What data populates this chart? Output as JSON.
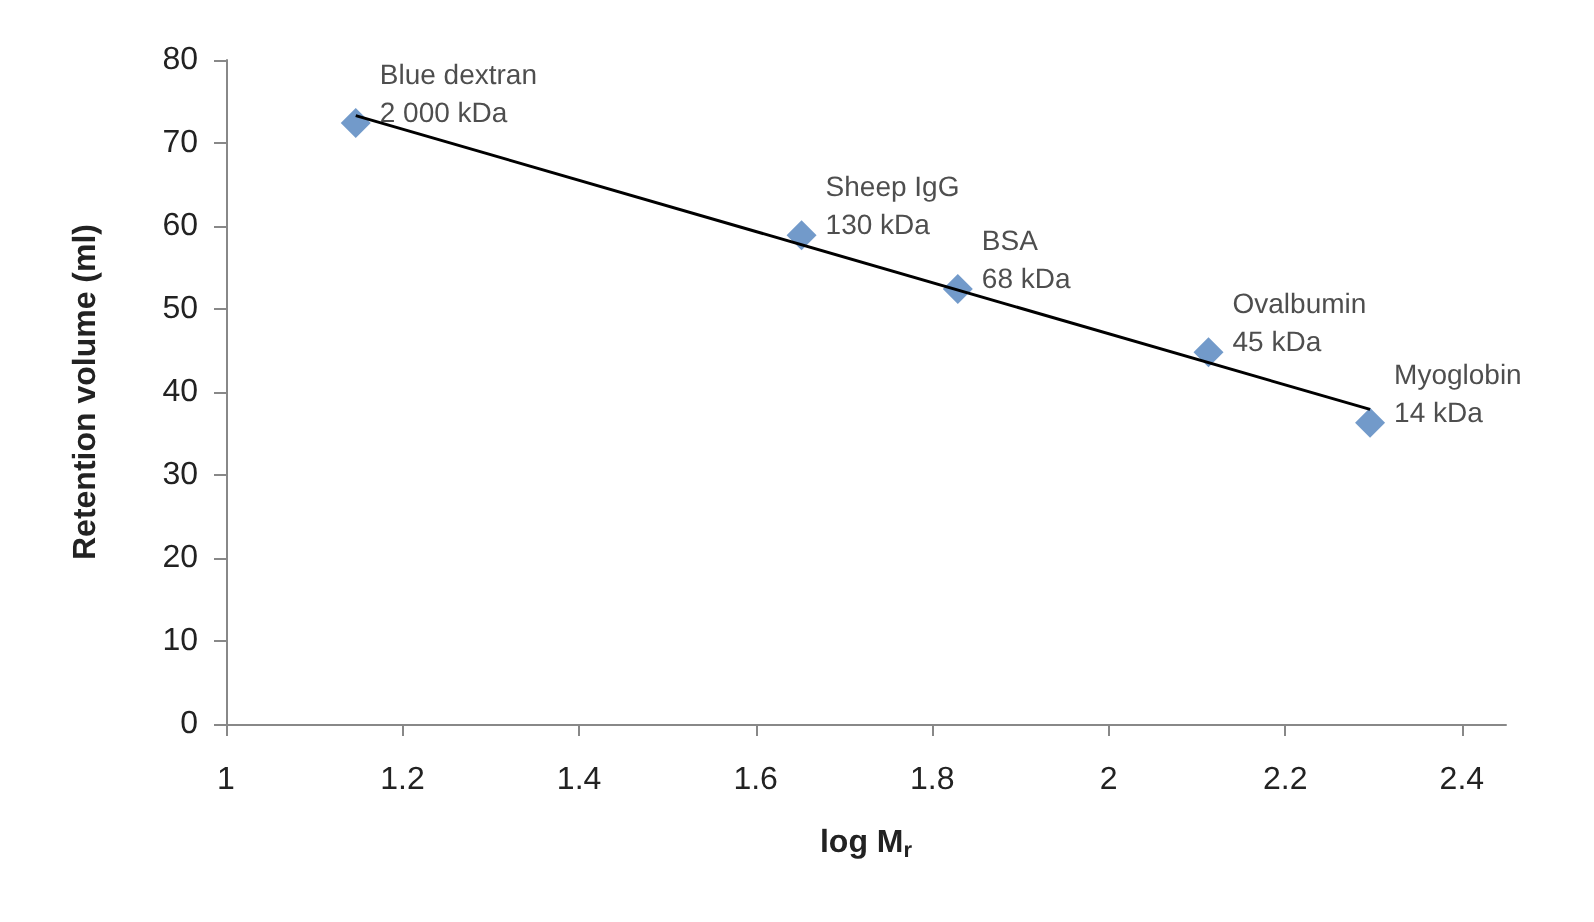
{
  "chart_data": {
    "type": "scatter",
    "xlabel": "log M$_{r}$",
    "ylabel": "Retention volume (ml)",
    "x": [
      1.147,
      1.652,
      1.829,
      2.113,
      2.296
    ],
    "series": [
      {
        "color": "#4f81bd",
        "values": [
          72.4,
          58.9,
          52.4,
          44.8,
          36.3
        ],
        "marker": "diamond"
      },
      {
        "type": "line",
        "color": "#000000",
        "x": [
          1.147,
          2.296
        ],
        "values": [
          73.3,
          37.9
        ],
        "marker": "none"
      }
    ],
    "annotations": [
      {
        "text": "Blue dextran\n2 000 kDa",
        "x": 1.147,
        "y": 72.4
      },
      {
        "text": "Sheep IgG\n130 kDa",
        "x": 1.652,
        "y": 58.9
      },
      {
        "text": "BSA\n68 kDa",
        "x": 1.829,
        "y": 52.4
      },
      {
        "text": "Ovalbumin\n45 kDa",
        "x": 2.113,
        "y": 44.8
      },
      {
        "text": "Myoglobin\n14 kDa",
        "x": 2.296,
        "y": 36.3
      }
    ],
    "xlim": [
      1,
      2.45
    ],
    "xticks": [
      1,
      1.2,
      1.4,
      1.6,
      1.8,
      2,
      2.2,
      2.4
    ],
    "ylim": [
      0,
      80
    ],
    "yticks": [
      0,
      10,
      20,
      30,
      40,
      50,
      60,
      70,
      80
    ]
  }
}
